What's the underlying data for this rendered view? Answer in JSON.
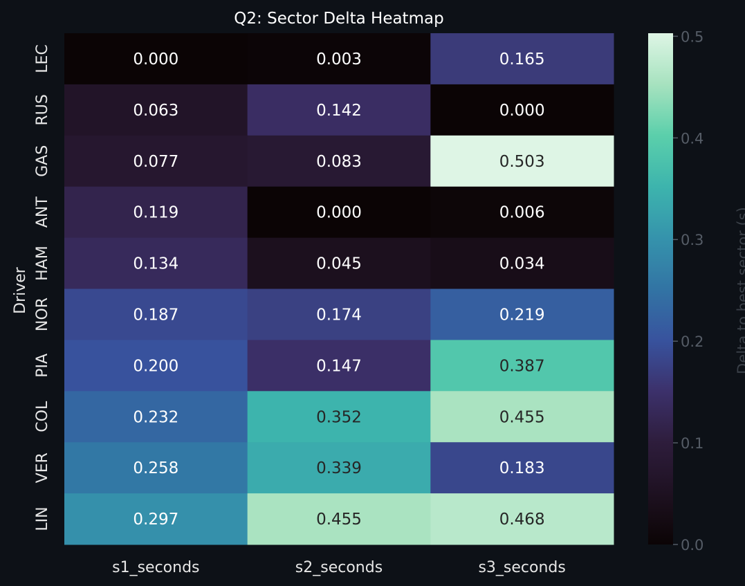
{
  "chart_data": {
    "type": "heatmap",
    "title": "Q2: Sector Delta Heatmap",
    "xlabel": "",
    "ylabel": "Driver",
    "columns": [
      "s1_seconds",
      "s2_seconds",
      "s3_seconds"
    ],
    "rows": [
      "LEC",
      "RUS",
      "GAS",
      "ANT",
      "HAM",
      "NOR",
      "PIA",
      "COL",
      "VER",
      "LIN"
    ],
    "values": [
      [
        0.0,
        0.003,
        0.165
      ],
      [
        0.063,
        0.142,
        0.0
      ],
      [
        0.077,
        0.083,
        0.503
      ],
      [
        0.119,
        0.0,
        0.006
      ],
      [
        0.134,
        0.045,
        0.034
      ],
      [
        0.187,
        0.174,
        0.219
      ],
      [
        0.2,
        0.147,
        0.387
      ],
      [
        0.232,
        0.352,
        0.455
      ],
      [
        0.258,
        0.339,
        0.183
      ],
      [
        0.297,
        0.455,
        0.468
      ]
    ],
    "value_format": "0.000",
    "colormap": "mako",
    "vmin": 0.0,
    "vmax": 0.503,
    "colorbar": {
      "label": "Delta to best sector (s)",
      "ticks": [
        0.0,
        0.1,
        0.2,
        0.3,
        0.4,
        0.5
      ],
      "tick_labels": [
        "0.0",
        "0.1",
        "0.2",
        "0.3",
        "0.4",
        "0.5"
      ]
    },
    "colors": {
      "background": "#0d1117",
      "text_light": "#ffffff",
      "text_dark": "#262626"
    }
  }
}
